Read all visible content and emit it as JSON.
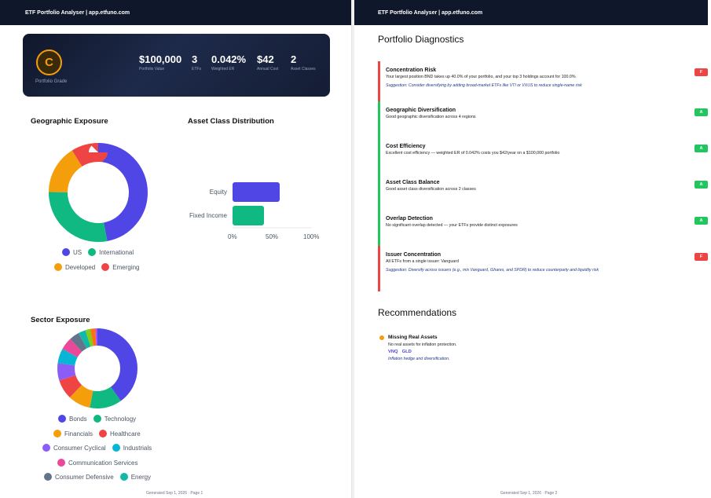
{
  "header": {
    "title": "ETF Portfolio Analyser  |  app.etfuno.com"
  },
  "hero": {
    "grade": "C",
    "grade_label": "Portfolio Grade",
    "metrics": [
      {
        "value": "$100,000",
        "label": "Portfolio Value"
      },
      {
        "value": "3",
        "label": "ETFs"
      },
      {
        "value": "0.042%",
        "label": "Weighted ER"
      },
      {
        "value": "$42",
        "label": "Annual Cost"
      },
      {
        "value": "2",
        "label": "Asset Classes"
      }
    ]
  },
  "geo": {
    "title": "Geographic Exposure",
    "segments": [
      {
        "name": "US",
        "value": 47,
        "color": "#4f46e5"
      },
      {
        "name": "International",
        "value": 28,
        "color": "#10b981"
      },
      {
        "name": "Developed",
        "value": 16,
        "color": "#f59e0b"
      },
      {
        "name": "Emerging",
        "value": 9,
        "color": "#ef4444"
      }
    ],
    "legend": [
      "US",
      "International",
      "Developed",
      "Emerging"
    ]
  },
  "asset": {
    "title": "Asset Class Distribution",
    "bars": [
      {
        "name": "Equity",
        "value": 60,
        "color": "#4f46e5"
      },
      {
        "name": "Fixed Income",
        "value": 40,
        "color": "#10b981"
      }
    ],
    "ticks": [
      "0%",
      "50%",
      "100%"
    ]
  },
  "sector": {
    "title": "Sector Exposure",
    "segments": [
      {
        "name": "Bonds",
        "value": 40,
        "color": "#4f46e5"
      },
      {
        "name": "Technology",
        "value": 13,
        "color": "#10b981"
      },
      {
        "name": "Financials",
        "value": 9,
        "color": "#f59e0b"
      },
      {
        "name": "Healthcare",
        "value": 8,
        "color": "#ef4444"
      },
      {
        "name": "Consumer Cyclical",
        "value": 7,
        "color": "#8b5cf6"
      },
      {
        "name": "Industrials",
        "value": 6,
        "color": "#06b6d4"
      },
      {
        "name": "Communication Services",
        "value": 5,
        "color": "#ec4899"
      },
      {
        "name": "Consumer Defensive",
        "value": 4,
        "color": "#64748b"
      },
      {
        "name": "Energy",
        "value": 3,
        "color": "#14b8a6"
      },
      {
        "name": "",
        "value": 2,
        "color": "#84cc16"
      },
      {
        "name": "",
        "value": 2,
        "color": "#f97316"
      },
      {
        "name": "",
        "value": 1,
        "color": "#a855f7"
      }
    ],
    "legend": [
      "Bonds",
      "Technology",
      "Financials",
      "Healthcare",
      "Consumer Cyclical",
      "Industrials",
      "Communication Services",
      "Consumer Defensive",
      "Energy"
    ]
  },
  "footer1": "Generated Sep 1, 2026  ·  Page 1",
  "footer2": "Generated Sep 1, 2026  ·  Page 2",
  "diagnostics": {
    "title": "Portfolio Diagnostics",
    "items": [
      {
        "title": "Concentration Risk",
        "desc": "Your largest position BND takes up 40.0% of your portfolio, and your top 3 holdings account for 100.0%",
        "suggestion": "Suggestion: Consider diversifying by adding broad-market ETFs like VTI or VXUS to reduce single-name risk",
        "grade": "F",
        "color": "#ef4444"
      },
      {
        "title": "Geographic Diversification",
        "desc": "Good geographic diversification across 4 regions",
        "suggestion": "",
        "grade": "A",
        "color": "#22c55e"
      },
      {
        "title": "Cost Efficiency",
        "desc": "Excellent cost efficiency — weighted ER of 0.042% costs you $42/year on a $100,000 portfolio",
        "suggestion": "",
        "grade": "A",
        "color": "#22c55e"
      },
      {
        "title": "Asset Class Balance",
        "desc": "Good asset class diversification across 2 classes",
        "suggestion": "",
        "grade": "A",
        "color": "#22c55e"
      },
      {
        "title": "Overlap Detection",
        "desc": "No significant overlap detected — your ETFs provide distinct exposures",
        "suggestion": "",
        "grade": "A",
        "color": "#22c55e"
      },
      {
        "title": "Issuer Concentration",
        "desc": "All ETFs from a single issuer: Vanguard",
        "suggestion": "Suggestion: Diversify across issuers (e.g., mix Vanguard, iShares, and SPDR) to reduce counterparty and liquidity risk",
        "grade": "F",
        "color": "#ef4444"
      }
    ]
  },
  "recommendations": {
    "title": "Recommendations",
    "items": [
      {
        "title": "Missing Real Assets",
        "desc": "No real assets for inflation protection.",
        "tickers": [
          "VNQ",
          "GLD"
        ],
        "note": "Inflation hedge and diversification."
      }
    ]
  }
}
